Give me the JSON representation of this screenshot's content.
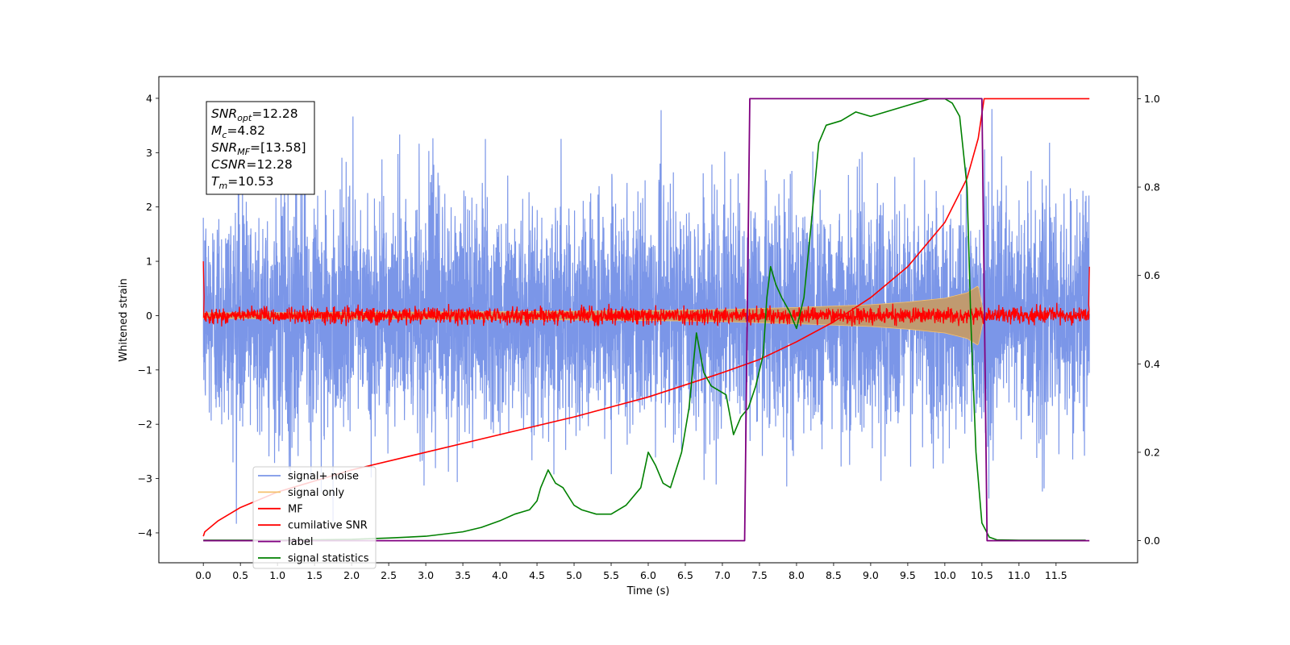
{
  "chart_data": {
    "type": "line",
    "xlabel": "Time (s)",
    "ylabel": "Whitened strain",
    "xlim": [
      -0.6,
      12.6
    ],
    "ylim": [
      -4.55,
      4.4
    ],
    "ylim_right": [
      -0.05,
      1.05
    ],
    "x_ticks": [
      "0.0",
      "0.5",
      "1.0",
      "1.5",
      "2.0",
      "2.5",
      "3.0",
      "3.5",
      "4.0",
      "4.5",
      "5.0",
      "5.5",
      "6.0",
      "6.5",
      "7.0",
      "7.5",
      "8.0",
      "8.5",
      "9.0",
      "9.5",
      "10.0",
      "10.5",
      "11.0",
      "11.5"
    ],
    "y_ticks": [
      "−4",
      "−3",
      "−2",
      "−1",
      "0",
      "1",
      "2",
      "3",
      "4"
    ],
    "y_ticks_right": [
      "0.0",
      "0.2",
      "0.4",
      "0.6",
      "0.8",
      "1.0"
    ],
    "grid": false,
    "legend_position": "lower-left",
    "legend": [
      {
        "label": "signal+ noise",
        "color": "#7b96e8"
      },
      {
        "label": "signal only",
        "color": "#f5c16e"
      },
      {
        "label": "MF",
        "color": "#ff0000"
      },
      {
        "label": "cumilative SNR",
        "color": "#ff0000"
      },
      {
        "label": "label",
        "color": "#800080"
      },
      {
        "label": "signal statistics",
        "color": "#008000"
      }
    ],
    "annotation": [
      {
        "sym": "SNR",
        "sub": "opt",
        "val": "=12.28"
      },
      {
        "sym": "M",
        "sub": "c",
        "val": "=4.82"
      },
      {
        "sym": "SNR",
        "sub": "MF",
        "val": "=[13.58]"
      },
      {
        "sym": "CSNR",
        "sub": "",
        "val": "=12.28"
      },
      {
        "sym": "T",
        "sub": "m",
        "val": "=10.53"
      }
    ],
    "series": [
      {
        "name": "label",
        "axis": "right",
        "color": "#800080",
        "x": [
          0.0,
          7.3,
          7.37,
          10.5,
          10.57,
          11.95
        ],
        "y": [
          0.0,
          0.0,
          1.0,
          1.0,
          0.0,
          0.0
        ]
      },
      {
        "name": "cumilative SNR",
        "axis": "right",
        "color": "#ff0000",
        "x": [
          0.0,
          0.02,
          0.2,
          0.5,
          1.0,
          2.0,
          3.0,
          4.0,
          5.0,
          6.0,
          7.0,
          7.5,
          8.0,
          8.5,
          9.0,
          9.5,
          10.0,
          10.3,
          10.45,
          10.53,
          11.95
        ],
        "y": [
          0.01,
          0.02,
          0.045,
          0.075,
          0.11,
          0.16,
          0.2,
          0.24,
          0.28,
          0.325,
          0.38,
          0.41,
          0.45,
          0.495,
          0.55,
          0.62,
          0.72,
          0.82,
          0.91,
          1.0,
          1.0
        ]
      },
      {
        "name": "signal statistics",
        "axis": "right",
        "color": "#008000",
        "x": [
          0.0,
          0.5,
          1.0,
          1.5,
          2.0,
          2.5,
          3.0,
          3.5,
          3.75,
          4.0,
          4.2,
          4.4,
          4.5,
          4.55,
          4.65,
          4.75,
          4.85,
          5.0,
          5.1,
          5.3,
          5.5,
          5.7,
          5.9,
          6.0,
          6.1,
          6.2,
          6.3,
          6.45,
          6.55,
          6.65,
          6.75,
          6.85,
          6.95,
          7.05,
          7.15,
          7.25,
          7.35,
          7.45,
          7.55,
          7.6,
          7.65,
          7.72,
          7.8,
          7.9,
          8.0,
          8.1,
          8.2,
          8.3,
          8.4,
          8.6,
          8.8,
          9.0,
          9.2,
          9.4,
          9.6,
          9.8,
          10.0,
          10.1,
          10.2,
          10.3,
          10.35,
          10.42,
          10.5,
          10.6,
          10.7,
          11.0,
          11.5,
          11.9
        ],
        "y": [
          0.001,
          0.001,
          0.001,
          0.002,
          0.003,
          0.006,
          0.01,
          0.02,
          0.03,
          0.045,
          0.06,
          0.07,
          0.09,
          0.12,
          0.16,
          0.13,
          0.12,
          0.08,
          0.07,
          0.06,
          0.06,
          0.08,
          0.12,
          0.2,
          0.17,
          0.13,
          0.12,
          0.2,
          0.3,
          0.47,
          0.38,
          0.35,
          0.34,
          0.33,
          0.24,
          0.28,
          0.3,
          0.35,
          0.42,
          0.55,
          0.62,
          0.58,
          0.55,
          0.52,
          0.48,
          0.55,
          0.72,
          0.9,
          0.94,
          0.95,
          0.97,
          0.96,
          0.97,
          0.98,
          0.99,
          1.0,
          1.0,
          0.99,
          0.96,
          0.8,
          0.5,
          0.2,
          0.04,
          0.008,
          0.002,
          0.001,
          0.001,
          0.001
        ]
      },
      {
        "name": "MF",
        "axis": "left",
        "color": "#ff0000",
        "x_range": [
          0.0,
          11.95
        ],
        "amplitude_y": 0.12,
        "edge_values_y": [
          1.0,
          0.9
        ]
      },
      {
        "name": "signal only",
        "axis": "left",
        "color": "#f5c16e",
        "envelope_x": [
          0.0,
          2.0,
          4.0,
          6.0,
          7.0,
          8.0,
          9.0,
          9.5,
          10.0,
          10.3,
          10.45,
          10.53
        ],
        "envelope_y": [
          0.05,
          0.06,
          0.07,
          0.09,
          0.11,
          0.15,
          0.2,
          0.25,
          0.32,
          0.42,
          0.55,
          0.0
        ]
      },
      {
        "name": "signal+ noise",
        "axis": "left",
        "color": "#7b96e8",
        "x_range": [
          0.0,
          11.95
        ],
        "typical_range_y": [
          -2.3,
          2.3
        ],
        "extreme_y": [
          -4.1,
          4.0
        ]
      }
    ]
  }
}
